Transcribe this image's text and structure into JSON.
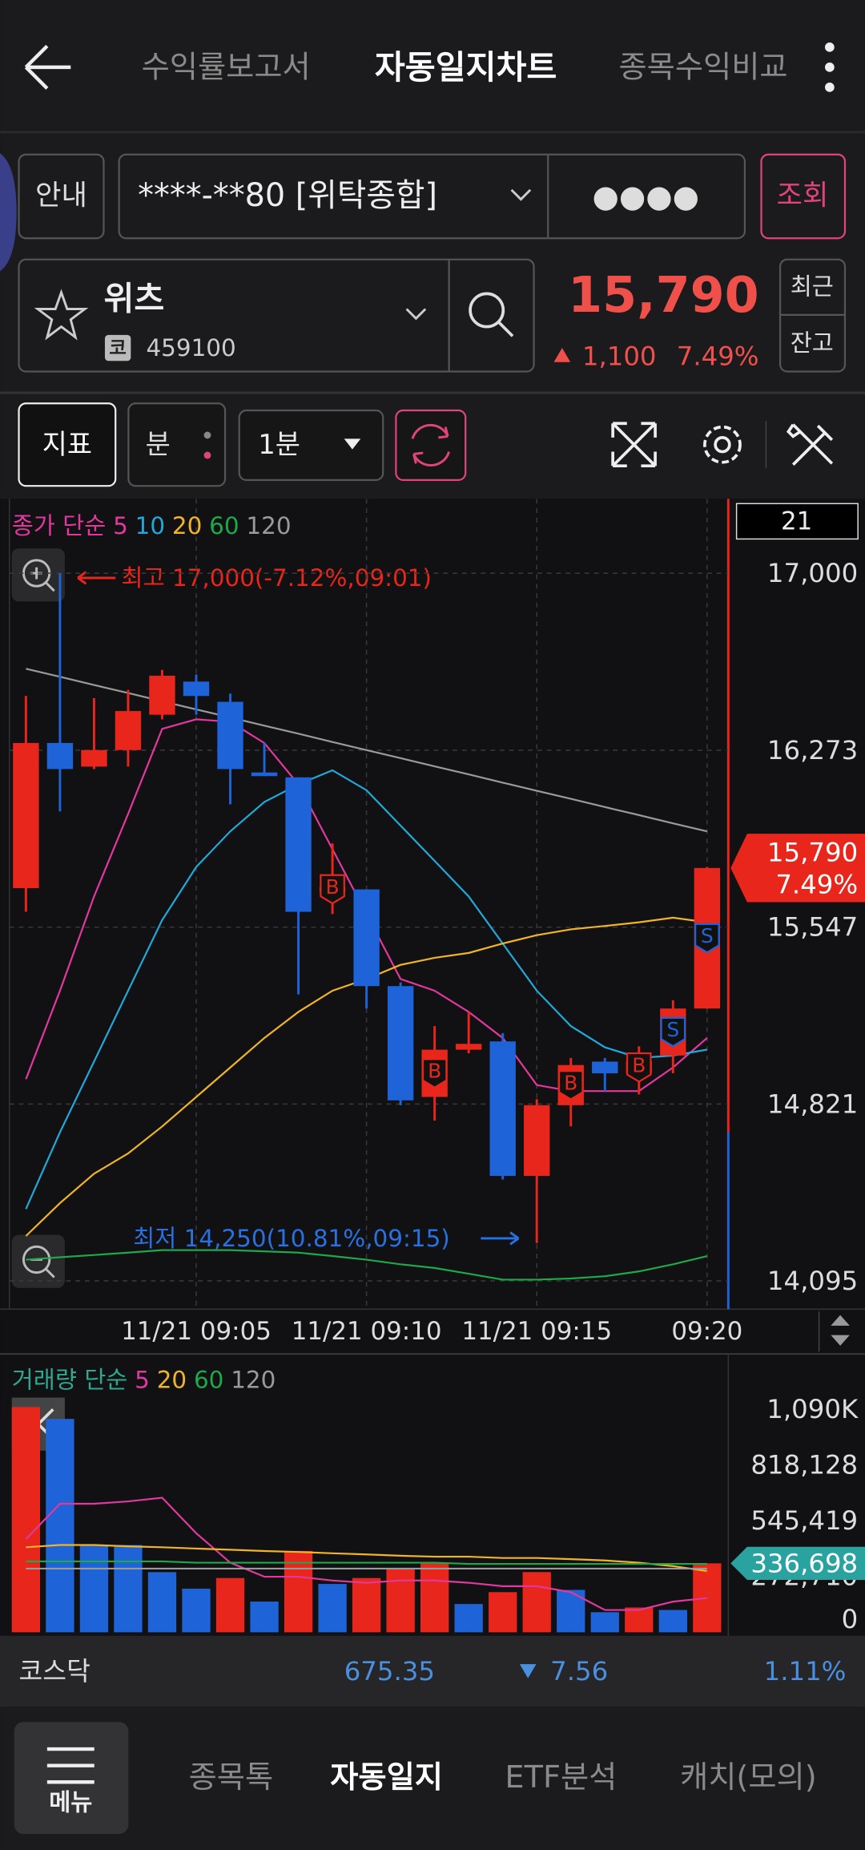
{
  "header": {
    "tabs": [
      "수익률보고서",
      "자동일지차트",
      "종목수익비교"
    ],
    "active_tab": 1
  },
  "account": {
    "guide_button": "안내",
    "account": "****-**80 [위탁종합]",
    "password": "●●●●",
    "query_button": "조회"
  },
  "stock": {
    "name": "위츠",
    "market_badge": "코",
    "code": "459100",
    "price": "15,790",
    "change": "1,100",
    "change_pct": "7.49%",
    "recent_button": "최근",
    "balance_button": "잔고"
  },
  "toolbar": {
    "indicator_button": "지표",
    "unit_button": "분",
    "interval": "1분"
  },
  "price_chart": {
    "type": "candlestick",
    "legend_title": "종가 단순",
    "legend_color": "#e0389e",
    "count_label": "21",
    "categories": [
      null,
      null,
      null,
      null,
      null,
      "11/21 09:05",
      null,
      null,
      null,
      null,
      "11/21 09:10",
      null,
      null,
      null,
      null,
      "11/21 09:15",
      null,
      null,
      null,
      null,
      "09:20"
    ],
    "open": [
      15707,
      16303,
      16206,
      16274,
      16419,
      16555,
      16472,
      16182,
      16162,
      15693,
      15702,
      15305,
      14850,
      15044,
      15078,
      14526,
      14816,
      14995,
      14947,
      15020,
      15213
    ],
    "high": [
      16496,
      17000,
      16487,
      16521,
      16603,
      16584,
      16506,
      16303,
      16162,
      15891,
      15702,
      15320,
      15141,
      15199,
      15112,
      14841,
      15010,
      15010,
      15058,
      15247,
      15794
    ],
    "low": [
      15610,
      16022,
      16196,
      16206,
      16400,
      16419,
      16051,
      16167,
      15271,
      15601,
      15213,
      14816,
      14753,
      15029,
      14511,
      14250,
      14729,
      14874,
      14860,
      14947,
      15213
    ],
    "close": [
      16303,
      16196,
      16274,
      16434,
      16579,
      16496,
      16196,
      16167,
      15610,
      15712,
      15305,
      14836,
      15044,
      15068,
      14526,
      14816,
      14981,
      14947,
      14995,
      15213,
      15790
    ],
    "up_color": "#e8261c",
    "down_color": "#1f63d8",
    "ylim": [
      13979,
      17305
    ],
    "yticks": [
      {
        "value": 17000,
        "label": "17,000"
      },
      {
        "value": 16273,
        "label": "16,273"
      },
      {
        "value": 15547,
        "label": "15,547"
      },
      {
        "value": 14821,
        "label": "14,821"
      },
      {
        "value": 14095,
        "label": "14,095"
      }
    ],
    "grid": true,
    "moving_averages": [
      {
        "name": "5",
        "color": "#e0389e",
        "values": [
          14923,
          15286,
          15673,
          16012,
          16361,
          16400,
          16390,
          16303,
          16133,
          15867,
          15601,
          15334,
          15286,
          15199,
          15092,
          14899,
          14874,
          14874,
          14874,
          14971,
          15092
        ]
      },
      {
        "name": "10",
        "color": "#22a8d8",
        "values": [
          14390,
          14705,
          14995,
          15286,
          15576,
          15794,
          15940,
          16061,
          16133,
          16191,
          16109,
          15964,
          15819,
          15673,
          15480,
          15286,
          15141,
          15054,
          15010,
          15020,
          15044
        ]
      },
      {
        "name": "20",
        "color": "#f0b429",
        "values": [
          14279,
          14414,
          14535,
          14618,
          14729,
          14850,
          14971,
          15092,
          15199,
          15286,
          15334,
          15392,
          15421,
          15441,
          15480,
          15514,
          15538,
          15552,
          15567,
          15586,
          15567
        ]
      },
      {
        "name": "60",
        "color": "#1fa84a",
        "values": [
          14182,
          14192,
          14201,
          14211,
          14221,
          14221,
          14221,
          14216,
          14211,
          14197,
          14182,
          14163,
          14148,
          14124,
          14100,
          14100,
          14105,
          14114,
          14134,
          14163,
          14197
        ]
      },
      {
        "name": "120",
        "color": "#9a9a9a",
        "values": [
          16608,
          16575,
          16541,
          16508,
          16474,
          16441,
          16408,
          16374,
          16341,
          16307,
          16274,
          16241,
          16207,
          16174,
          16140,
          16107,
          16074,
          16040,
          16007,
          15973,
          15940
        ]
      }
    ],
    "markers": [
      {
        "index": 9,
        "label": "B"
      },
      {
        "index": 12,
        "label": "B"
      },
      {
        "index": 16,
        "label": "B"
      },
      {
        "index": 18,
        "label": "B"
      },
      {
        "index": 19,
        "label": "S"
      },
      {
        "index": 20,
        "label": "S"
      }
    ],
    "high_note": "최고 17,000(-7.12%,09:01)",
    "low_note": "최저 14,250(10.81%,09:15)"
  },
  "volume_chart": {
    "type": "bar",
    "legend_title": "거래량 단순",
    "legend_color": "#30a890",
    "values": [
      1100000,
      1042000,
      426000,
      426000,
      293700,
      213000,
      265000,
      150000,
      397000,
      236000,
      265000,
      311000,
      340000,
      138000,
      196000,
      294000,
      207000,
      98000,
      121000,
      109000,
      336698
    ],
    "value_labels": [
      null,
      null,
      null,
      null,
      null,
      null,
      null,
      null,
      null,
      null,
      null,
      null,
      null,
      null,
      null,
      null,
      null,
      null,
      null,
      null,
      "336,698"
    ],
    "colors": [
      "#e8261c",
      "#1f63d8",
      "#1f63d8",
      "#1f63d8",
      "#1f63d8",
      "#1f63d8",
      "#e8261c",
      "#1f63d8",
      "#e8261c",
      "#1f63d8",
      "#e8261c",
      "#e8261c",
      "#e8261c",
      "#1f63d8",
      "#e8261c",
      "#e8261c",
      "#1f63d8",
      "#1f63d8",
      "#e8261c",
      "#1f63d8",
      "#e8261c"
    ],
    "ylim": [
      0,
      1290000
    ],
    "yticks": [
      {
        "value": 1090000,
        "label": "1,090K"
      },
      {
        "value": 818128,
        "label": "818,128"
      },
      {
        "value": 545419,
        "label": "545,419"
      },
      {
        "value": 272710,
        "label": "272,710"
      },
      0
    ],
    "moving_averages": [
      {
        "name": "5",
        "color": "#e0389e",
        "values": [
          455000,
          628000,
          628000,
          639000,
          657000,
          484000,
          340000,
          271000,
          271000,
          253000,
          242000,
          253000,
          253000,
          242000,
          225000,
          225000,
          196000,
          109000,
          109000,
          150000,
          167000
        ]
      },
      {
        "name": "20",
        "color": "#f0b429",
        "values": [
          415000,
          426000,
          426000,
          420000,
          415000,
          409000,
          403000,
          397000,
          392000,
          386000,
          380000,
          374000,
          369000,
          369000,
          363000,
          363000,
          357000,
          351000,
          340000,
          323000,
          299000
        ]
      },
      {
        "name": "60",
        "color": "#1fa84a",
        "values": [
          346000,
          346000,
          346000,
          346000,
          346000,
          340000,
          340000,
          340000,
          340000,
          340000,
          340000,
          340000,
          340000,
          334000,
          334000,
          334000,
          334000,
          334000,
          334000,
          334000,
          334000
        ]
      },
      {
        "name": "120",
        "color": "#9a9a9a",
        "values": [
          311000,
          311000,
          311000,
          311000,
          311000,
          311000,
          311000,
          311000,
          311000,
          311000,
          311000,
          311000,
          311000,
          311000,
          311000,
          311000,
          311000,
          311000,
          311000,
          311000,
          311000
        ]
      }
    ]
  },
  "market": {
    "name": "코스닥",
    "index": "675.35",
    "change": "7.56",
    "change_pct": "1.11%"
  },
  "nav": {
    "menu": "메뉴",
    "tabs": [
      "종목톡",
      "자동일지",
      "ETF분석",
      "캐치(모의)"
    ],
    "active_tab": 1
  }
}
